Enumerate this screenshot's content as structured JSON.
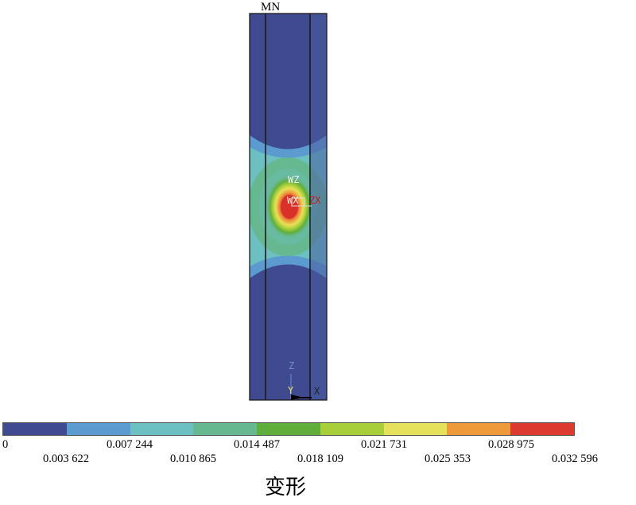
{
  "model": {
    "node_label": "MN",
    "hotspot_labels": [
      "WZ",
      "WX",
      "ZX"
    ],
    "axis_labels": {
      "z": "Z",
      "y": "Y",
      "x": "X"
    }
  },
  "legend": {
    "colors": [
      "#3f4a91",
      "#5b9bd0",
      "#6cc0c1",
      "#66b890",
      "#5fae3c",
      "#a8cf3a",
      "#e6e15a",
      "#ee9a3b",
      "#dc3a2e"
    ],
    "ticks_upper": [
      "0",
      "0.007 244",
      "0.014 487",
      "0.021 731",
      "0.028 975"
    ],
    "ticks_lower": [
      "0.003 622",
      "0.010 865",
      "0.018 109",
      "0.025 353",
      "0.032 596"
    ]
  },
  "caption": "变形"
}
